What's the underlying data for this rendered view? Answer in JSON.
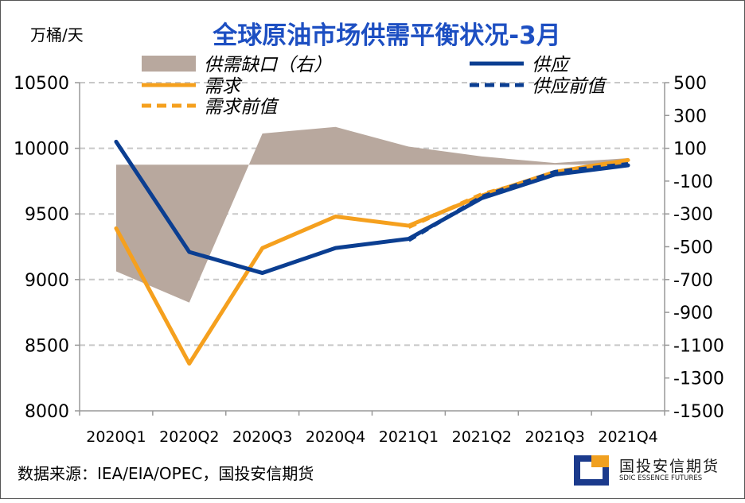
{
  "chart_data": {
    "type": "line",
    "title": "全球原油市场供需平衡状况-3月",
    "unit_left": "万桶/天",
    "categories": [
      "2020Q1",
      "2020Q2",
      "2020Q3",
      "2020Q4",
      "2021Q1",
      "2021Q2",
      "2021Q3",
      "2021Q4"
    ],
    "y_left": {
      "range": [
        8000,
        10500
      ],
      "ticks": [
        8000,
        8500,
        9000,
        9500,
        10000,
        10500
      ]
    },
    "y_right": {
      "range": [
        -1500,
        500
      ],
      "ticks": [
        -1500,
        -1300,
        -1100,
        -900,
        -700,
        -500,
        -300,
        -100,
        100,
        300,
        500
      ]
    },
    "grid": true,
    "series": [
      {
        "name": "供需缺口（右）",
        "kind": "area",
        "axis": "right",
        "color": "#b8a89e",
        "values": [
          -650,
          -840,
          190,
          230,
          110,
          50,
          10,
          40
        ]
      },
      {
        "name": "需求",
        "kind": "line",
        "axis": "left",
        "color": "#f5a01e",
        "values": [
          9390,
          8360,
          9240,
          9480,
          9410,
          9640,
          9820,
          9910
        ]
      },
      {
        "name": "需求前值",
        "kind": "dashed",
        "axis": "left",
        "color": "#f5a01e",
        "values": [
          null,
          null,
          null,
          null,
          9400,
          9650,
          9800,
          9890
        ]
      },
      {
        "name": "供应",
        "kind": "line",
        "axis": "left",
        "color": "#0b3e91",
        "values": [
          10050,
          9210,
          9050,
          9240,
          9310,
          9620,
          9800,
          9870
        ]
      },
      {
        "name": "供应前值",
        "kind": "dashed",
        "axis": "left",
        "color": "#0b3e91",
        "values": [
          null,
          null,
          null,
          null,
          9300,
          9630,
          9820,
          9880
        ]
      }
    ],
    "legend_position": "top"
  },
  "footer": {
    "source": "数据来源：IEA/EIA/OPEC，国投安信期货",
    "logo_cn": "国投安信期货",
    "logo_en": "SDIC ESSENCE FUTURES"
  }
}
